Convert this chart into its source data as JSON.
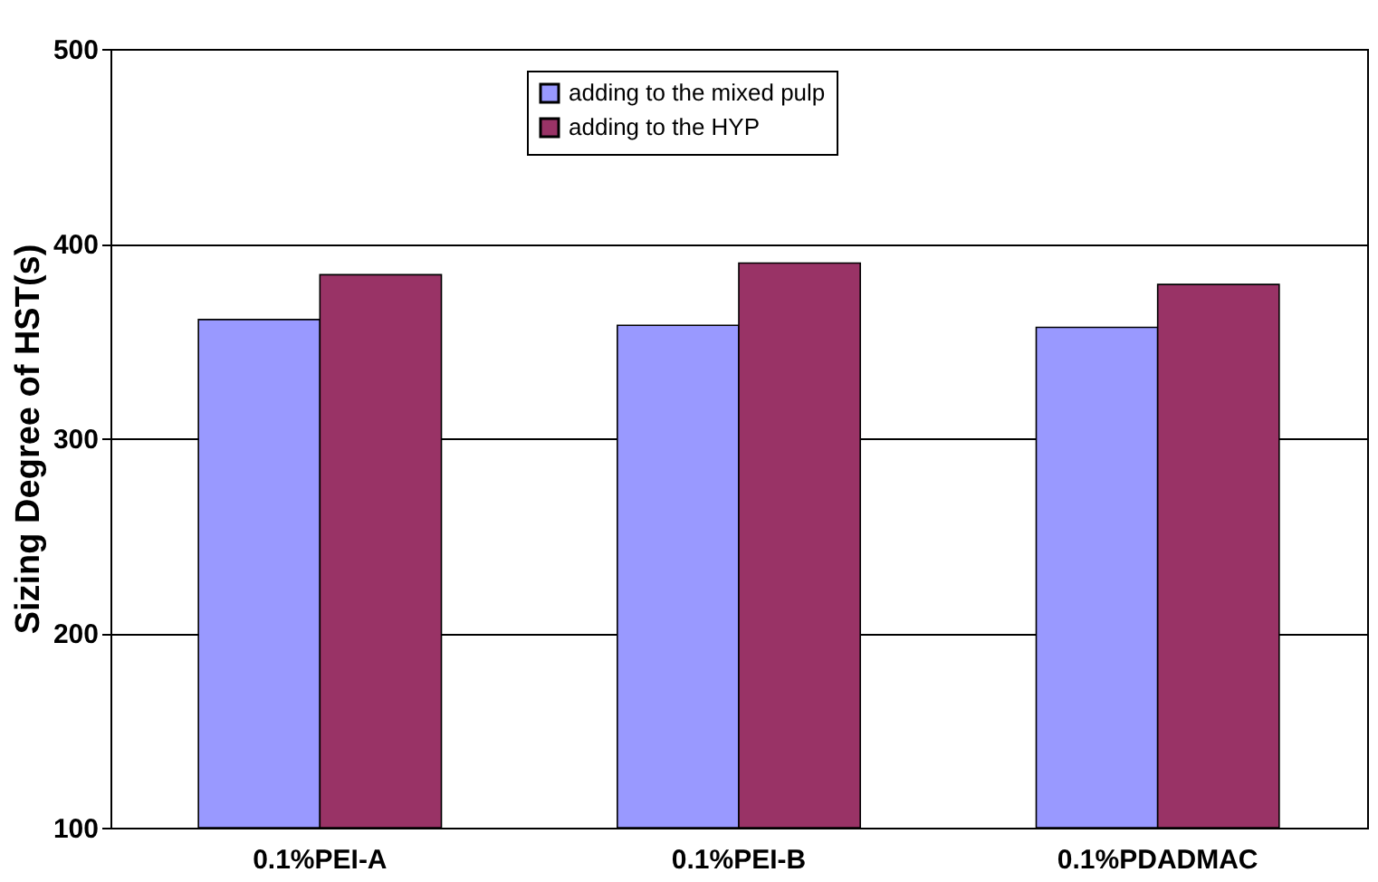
{
  "chart_data": {
    "type": "bar",
    "ylabel": "Sizing Degree of HST(s)",
    "categories": [
      "0.1%PEI-A",
      "0.1%PEI-B",
      "0.1%PDADMAC"
    ],
    "series": [
      {
        "name": "adding to the mixed pulp",
        "color": "#9999ff",
        "values": [
          361,
          358,
          357
        ]
      },
      {
        "name": "adding to the HYP",
        "color": "#993366",
        "values": [
          384,
          390,
          379
        ]
      }
    ],
    "ylim": [
      100,
      500
    ],
    "yticks": [
      100,
      200,
      300,
      400,
      500
    ],
    "grid": "y",
    "legend": "top"
  }
}
